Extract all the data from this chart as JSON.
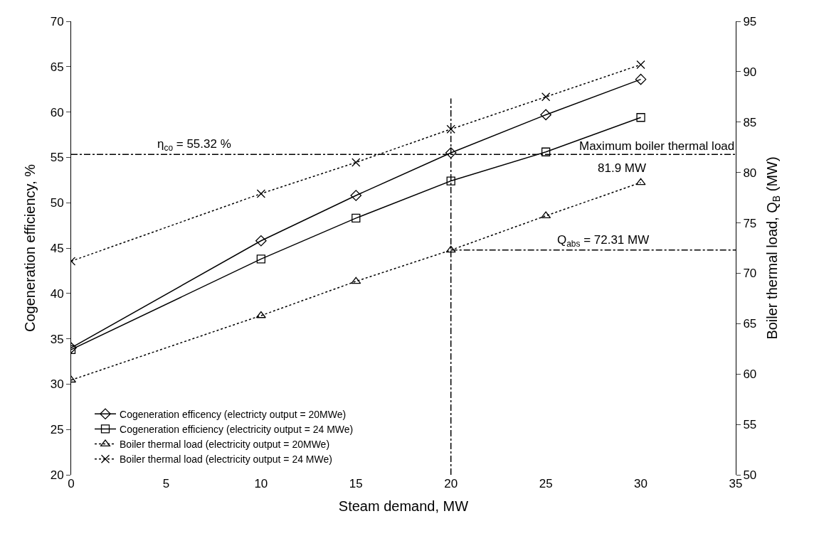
{
  "chart_data": {
    "type": "line",
    "xlabel": "Steam demand, MW",
    "ylabel": "Cogeneration efficiency, %",
    "y2label": "Boiler thermal load, Q$_{B}$ (MW)",
    "x": [
      0,
      10,
      15,
      20,
      25,
      30
    ],
    "xlim": [
      0,
      35
    ],
    "xticks": [
      0,
      5,
      10,
      15,
      20,
      25,
      30,
      35
    ],
    "ylim": [
      20,
      70
    ],
    "yticks": [
      20,
      25,
      30,
      35,
      40,
      45,
      50,
      55,
      60,
      65,
      70
    ],
    "y2lim": [
      50,
      95
    ],
    "y2ticks": [
      50,
      55,
      60,
      65,
      70,
      75,
      80,
      85,
      90,
      95
    ],
    "legend": "bottom left",
    "series": [
      {
        "name": "Cogeneration efficency (electricty output = 20MWe)",
        "color": "#000000",
        "marker": "diamond",
        "line_style": "solid",
        "values": [
          34.0,
          45.8,
          50.8,
          55.5,
          59.7,
          63.6
        ]
      },
      {
        "name": "Cogeneration efficiency (electricity output = 24 MWe)",
        "color": "#000000",
        "marker": "square",
        "line_style": "solid",
        "values": [
          33.8,
          43.8,
          48.3,
          52.4,
          55.6,
          59.4
        ]
      },
      {
        "name": "Boiler thermal load (electricity output = 20MWe)",
        "color": "#000000",
        "marker": "triangle",
        "line_style": "dotted",
        "axis": "y2",
        "values": [
          59.4,
          65.8,
          69.2,
          72.3,
          75.7,
          79.0
        ]
      },
      {
        "name": "Boiler thermal load (electricity output = 24 MWe)",
        "color": "#000000",
        "marker": "cross",
        "line_style": "dotted",
        "axis": "y2",
        "values": [
          71.2,
          77.9,
          81.0,
          84.3,
          87.5,
          90.7
        ]
      }
    ],
    "ref_lines": [
      {
        "axis": "x",
        "value": 20,
        "label": null,
        "line_style": "dashdot",
        "color": "#000000"
      },
      {
        "axis": "y",
        "value": 55.32,
        "label": "η$_{co}$ = 55.32 %",
        "line_style": "dashdot",
        "color": "#000000"
      },
      {
        "axis": "y2",
        "value": 72.31,
        "label": "Q$_{abs}$ = 72.31 MW",
        "line_style": "dashdot",
        "color": "#000000"
      }
    ],
    "annotations": [
      "Maximum boiler thermal load",
      "81.9 MW"
    ]
  }
}
